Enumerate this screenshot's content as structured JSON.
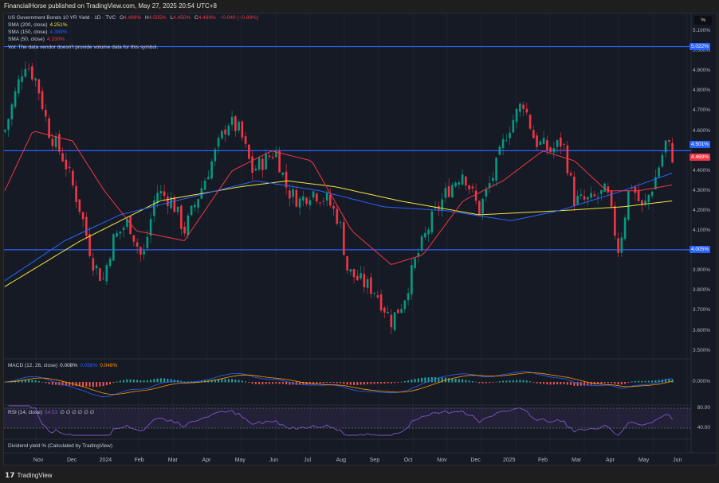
{
  "header": {
    "published": "FinancialHorse published on TradingView.com, May 27, 2025 20:54 UTC+8"
  },
  "legend": {
    "symbol": "US Government Bonds 10 YR Yield · 1D · TVC",
    "ohlc": {
      "o_label": "O",
      "o": "4.499%",
      "h_label": "H",
      "h": "4.505%",
      "l_label": "L",
      "l": "4.450%",
      "c_label": "C",
      "c": "4.469%",
      "chg": "−0.040 (−0.89%)"
    },
    "sma200": {
      "label": "SMA (200, close)",
      "value": "4.251%"
    },
    "sma150": {
      "label": "SMA (150, close)",
      "value": "4.389%"
    },
    "sma50": {
      "label": "SMA (50, close)",
      "value": "4.330%"
    },
    "vol": "Vol: The data vendor doesn't provide volume data for this symbol."
  },
  "macd": {
    "label": "MACD (12, 26, close)",
    "v1": "0.008%",
    "v2": "0.056%",
    "v3": "0.048%",
    "zero": "0.000%"
  },
  "rsi": {
    "label": "RSI (14, close)",
    "value": "54.53",
    "extra": "∅ ∅ ∅ ∅ ∅ ∅",
    "upper": "80.00",
    "lower": "40.00"
  },
  "dividend": {
    "label": "Dividend yield % (Calculated by TradingView)"
  },
  "price_axis": {
    "unit": "%",
    "ticks": [
      "5.100%",
      "5.000%",
      "4.900%",
      "4.800%",
      "4.700%",
      "4.600%",
      "4.400%",
      "4.300%",
      "4.200%",
      "4.100%",
      "3.900%",
      "3.800%",
      "3.700%",
      "3.600%",
      "3.500%"
    ],
    "tick_values": [
      5.1,
      5.0,
      4.9,
      4.8,
      4.7,
      4.6,
      4.4,
      4.3,
      4.2,
      4.1,
      3.9,
      3.8,
      3.7,
      3.6,
      3.5
    ],
    "levels": [
      {
        "label": "5.022%",
        "value": 5.022
      },
      {
        "label": "4.501%",
        "value": 4.501
      },
      {
        "label": "4.005%",
        "value": 4.005
      }
    ],
    "last": {
      "label": "4.469%",
      "value": 4.469
    }
  },
  "time_axis": [
    "Nov",
    "Dec",
    "2024",
    "Feb",
    "Mar",
    "Apr",
    "May",
    "Jun",
    "Jul",
    "Aug",
    "Sep",
    "Oct",
    "Nov",
    "Dec",
    "2025",
    "Feb",
    "Mar",
    "Apr",
    "May",
    "Jun"
  ],
  "footer": {
    "brand": "TradingView"
  },
  "colors": {
    "up": "#089981",
    "down": "#f23645",
    "sma200": "#f0e442",
    "sma150": "#2962ff",
    "sma50": "#f23645",
    "level": "#2962ff",
    "rsi": "#7e57c2"
  },
  "chart_data": {
    "type": "candlestick",
    "x_unit": "months since 2023-10-01",
    "ylim": [
      3.5,
      5.15
    ],
    "close_path": [
      [
        0.01,
        4.6
      ],
      [
        0.6,
        4.95
      ],
      [
        0.95,
        4.85
      ],
      [
        1.31,
        4.6
      ],
      [
        1.78,
        4.45
      ],
      [
        2.25,
        4.2
      ],
      [
        2.6,
        3.95
      ],
      [
        2.91,
        3.85
      ],
      [
        3.19,
        4.05
      ],
      [
        3.66,
        4.15
      ],
      [
        4.08,
        3.95
      ],
      [
        4.48,
        4.3
      ],
      [
        4.95,
        4.25
      ],
      [
        5.31,
        4.1
      ],
      [
        5.78,
        4.3
      ],
      [
        6.25,
        4.5
      ],
      [
        6.6,
        4.65
      ],
      [
        6.95,
        4.6
      ],
      [
        7.31,
        4.4
      ],
      [
        7.66,
        4.45
      ],
      [
        8.01,
        4.5
      ],
      [
        8.36,
        4.3
      ],
      [
        8.72,
        4.25
      ],
      [
        9.07,
        4.3
      ],
      [
        9.55,
        4.25
      ],
      [
        9.89,
        4.15
      ],
      [
        10.13,
        3.9
      ],
      [
        10.48,
        3.85
      ],
      [
        10.95,
        3.8
      ],
      [
        11.42,
        3.65
      ],
      [
        11.78,
        3.75
      ],
      [
        12.13,
        3.95
      ],
      [
        12.6,
        4.15
      ],
      [
        13.07,
        4.3
      ],
      [
        13.54,
        4.4
      ],
      [
        14.01,
        4.2
      ],
      [
        14.48,
        4.4
      ],
      [
        14.84,
        4.6
      ],
      [
        15.31,
        4.75
      ],
      [
        15.66,
        4.55
      ],
      [
        16.13,
        4.5
      ],
      [
        16.48,
        4.55
      ],
      [
        16.83,
        4.25
      ],
      [
        17.31,
        4.25
      ],
      [
        17.78,
        4.3
      ],
      [
        18.13,
        4.0
      ],
      [
        18.48,
        4.35
      ],
      [
        18.84,
        4.2
      ],
      [
        19.19,
        4.35
      ],
      [
        19.54,
        4.55
      ],
      [
        19.73,
        4.47
      ]
    ],
    "sma200": [
      [
        0.01,
        3.82
      ],
      [
        2.25,
        4.05
      ],
      [
        4.6,
        4.25
      ],
      [
        6.95,
        4.32
      ],
      [
        8.36,
        4.35
      ],
      [
        9.78,
        4.32
      ],
      [
        11.66,
        4.25
      ],
      [
        14.01,
        4.18
      ],
      [
        16.36,
        4.2
      ],
      [
        18.25,
        4.22
      ],
      [
        19.73,
        4.25
      ]
    ],
    "sma150": [
      [
        0.01,
        3.85
      ],
      [
        1.78,
        4.05
      ],
      [
        3.42,
        4.18
      ],
      [
        5.78,
        4.28
      ],
      [
        7.42,
        4.35
      ],
      [
        9.31,
        4.3
      ],
      [
        11.19,
        4.22
      ],
      [
        13.07,
        4.2
      ],
      [
        14.95,
        4.15
      ],
      [
        16.36,
        4.2
      ],
      [
        18.25,
        4.3
      ],
      [
        19.73,
        4.39
      ]
    ],
    "sma50": [
      [
        0.01,
        4.3
      ],
      [
        0.84,
        4.6
      ],
      [
        2.01,
        4.55
      ],
      [
        2.95,
        4.3
      ],
      [
        3.89,
        4.1
      ],
      [
        5.31,
        4.05
      ],
      [
        6.72,
        4.4
      ],
      [
        7.89,
        4.5
      ],
      [
        9.07,
        4.45
      ],
      [
        10.25,
        4.1
      ],
      [
        11.42,
        3.93
      ],
      [
        12.36,
        3.98
      ],
      [
        13.54,
        4.25
      ],
      [
        14.72,
        4.35
      ],
      [
        15.89,
        4.5
      ],
      [
        16.83,
        4.45
      ],
      [
        17.78,
        4.3
      ],
      [
        18.72,
        4.3
      ],
      [
        19.73,
        4.33
      ]
    ]
  }
}
